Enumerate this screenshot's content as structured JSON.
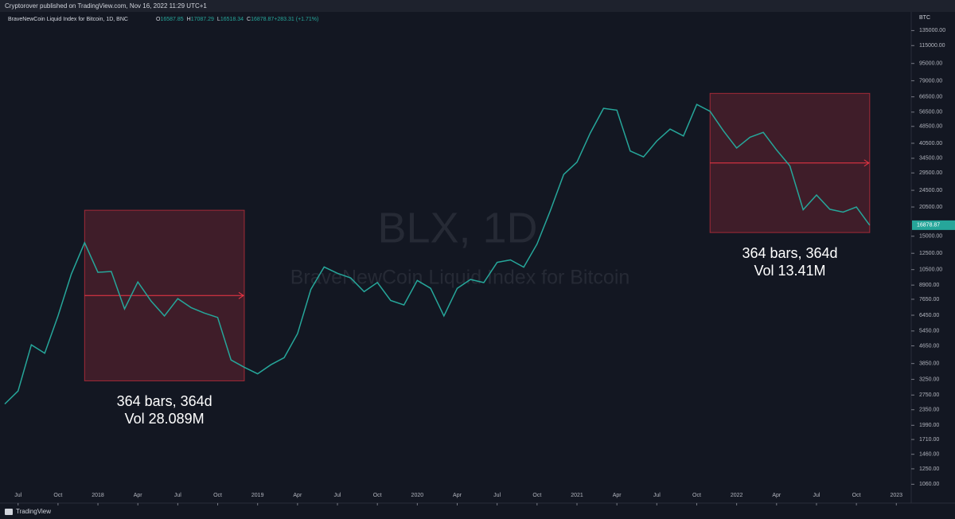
{
  "header": {
    "publisher": "Cryptorover published on TradingView.com, Nov 16, 2022 11:29 UTC+1"
  },
  "footer": {
    "brand": "TradingView"
  },
  "chart_data": {
    "type": "line",
    "symbol_title": "BraveNewCoin Liquid Index for Bitcoin, 1D, BNC",
    "ohlc": [
      {
        "key": "O",
        "value": "16587.85"
      },
      {
        "key": "H",
        "value": "17087.29"
      },
      {
        "key": "L",
        "value": "16518.34"
      },
      {
        "key": "C",
        "value": "16878.87"
      },
      {
        "key": "",
        "value": "+283.31 (+1.71%)"
      }
    ],
    "watermark": "BLX, 1D",
    "watermark_subtitle": "BraveNewCoin Liquid Index for Bitcoin",
    "currency": "BTC",
    "log_scale": true,
    "grid": false,
    "x": [
      "2017-06",
      "2017-07",
      "2017-08",
      "2017-09",
      "2017-10",
      "2017-11",
      "2017-12",
      "2018-01",
      "2018-02",
      "2018-03",
      "2018-04",
      "2018-05",
      "2018-06",
      "2018-07",
      "2018-08",
      "2018-09",
      "2018-10",
      "2018-11",
      "2018-12",
      "2019-01",
      "2019-02",
      "2019-03",
      "2019-04",
      "2019-05",
      "2019-06",
      "2019-07",
      "2019-08",
      "2019-09",
      "2019-10",
      "2019-11",
      "2019-12",
      "2020-01",
      "2020-02",
      "2020-03",
      "2020-04",
      "2020-05",
      "2020-06",
      "2020-07",
      "2020-08",
      "2020-09",
      "2020-10",
      "2020-11",
      "2020-12",
      "2021-01",
      "2021-02",
      "2021-03",
      "2021-04",
      "2021-05",
      "2021-06",
      "2021-07",
      "2021-08",
      "2021-09",
      "2021-10",
      "2021-11",
      "2021-12",
      "2022-01",
      "2022-02",
      "2022-03",
      "2022-04",
      "2022-05",
      "2022-06",
      "2022-07",
      "2022-08",
      "2022-09",
      "2022-10",
      "2022-11"
    ],
    "series": [
      {
        "color": "#26a69a",
        "values": [
          2500,
          2870,
          4700,
          4300,
          6400,
          10000,
          14000,
          10200,
          10300,
          6900,
          9200,
          7500,
          6400,
          7700,
          7000,
          6600,
          6300,
          4000,
          3700,
          3450,
          3800,
          4100,
          5300,
          8500,
          10800,
          10100,
          9600,
          8300,
          9150,
          7550,
          7200,
          9350,
          8600,
          6400,
          8600,
          9450,
          9140,
          11350,
          11650,
          10780,
          13800,
          19700,
          29000,
          33100,
          45200,
          58800,
          57700,
          37300,
          35000,
          41500,
          47100,
          43800,
          61300,
          57000,
          46300,
          38500,
          43200,
          45500,
          37700,
          31800,
          19900,
          23300,
          20000,
          19400,
          20500,
          16879
        ]
      }
    ],
    "last_price": 16878.87,
    "xlim": [
      "2017-06",
      "2023-02"
    ],
    "xticks": [
      {
        "value": "2017-07",
        "label": "Jul"
      },
      {
        "value": "2017-10",
        "label": "Oct"
      },
      {
        "value": "2018-01",
        "label": "2018"
      },
      {
        "value": "2018-04",
        "label": "Apr"
      },
      {
        "value": "2018-07",
        "label": "Jul"
      },
      {
        "value": "2018-10",
        "label": "Oct"
      },
      {
        "value": "2019-01",
        "label": "2019"
      },
      {
        "value": "2019-04",
        "label": "Apr"
      },
      {
        "value": "2019-07",
        "label": "Jul"
      },
      {
        "value": "2019-10",
        "label": "Oct"
      },
      {
        "value": "2020-01",
        "label": "2020"
      },
      {
        "value": "2020-04",
        "label": "Apr"
      },
      {
        "value": "2020-07",
        "label": "Jul"
      },
      {
        "value": "2020-10",
        "label": "Oct"
      },
      {
        "value": "2021-01",
        "label": "2021"
      },
      {
        "value": "2021-04",
        "label": "Apr"
      },
      {
        "value": "2021-07",
        "label": "Jul"
      },
      {
        "value": "2021-10",
        "label": "Oct"
      },
      {
        "value": "2022-01",
        "label": "2022"
      },
      {
        "value": "2022-04",
        "label": "Apr"
      },
      {
        "value": "2022-07",
        "label": "Jul"
      },
      {
        "value": "2022-10",
        "label": "Oct"
      },
      {
        "value": "2023-01",
        "label": "2023"
      }
    ],
    "ylim": [
      920,
      145000
    ],
    "yticks": [
      {
        "value": 135000,
        "label": "135000.00"
      },
      {
        "value": 115000,
        "label": "115000.00"
      },
      {
        "value": 95000,
        "label": "95000.00"
      },
      {
        "value": 79000,
        "label": "79000.00"
      },
      {
        "value": 66500,
        "label": "66500.00"
      },
      {
        "value": 56500,
        "label": "56500.00"
      },
      {
        "value": 48500,
        "label": "48500.00"
      },
      {
        "value": 40500,
        "label": "40500.00"
      },
      {
        "value": 34500,
        "label": "34500.00"
      },
      {
        "value": 29500,
        "label": "29500.00"
      },
      {
        "value": 24500,
        "label": "24500.00"
      },
      {
        "value": 20500,
        "label": "20500.00"
      },
      {
        "value": 15000,
        "label": "15000.00"
      },
      {
        "value": 12500,
        "label": "12500.00"
      },
      {
        "value": 10500,
        "label": "10500.00"
      },
      {
        "value": 8900,
        "label": "8900.00"
      },
      {
        "value": 7650,
        "label": "7650.00"
      },
      {
        "value": 6450,
        "label": "6450.00"
      },
      {
        "value": 5450,
        "label": "5450.00"
      },
      {
        "value": 4650,
        "label": "4650.00"
      },
      {
        "value": 3850,
        "label": "3850.00"
      },
      {
        "value": 3250,
        "label": "3250.00"
      },
      {
        "value": 2750,
        "label": "2750.00"
      },
      {
        "value": 2350,
        "label": "2350.00"
      },
      {
        "value": 1990,
        "label": "1990.00"
      },
      {
        "value": 1710,
        "label": "1710.00"
      },
      {
        "value": 1460,
        "label": "1460.00"
      },
      {
        "value": 1250,
        "label": "1250.00"
      },
      {
        "value": 1060,
        "label": "1060.00"
      }
    ],
    "measures": [
      {
        "start": "2017-12",
        "end": "2018-12",
        "high": 19800,
        "low": 3200,
        "color": "#f23645",
        "label_bars": "364 bars, 364d",
        "label_volume": "Vol 28.089M"
      },
      {
        "start": "2021-11",
        "end": "2022-11",
        "high": 69000,
        "low": 15600,
        "color": "#f23645",
        "label_bars": "364 bars, 364d",
        "label_volume": "Vol 13.41M"
      }
    ]
  }
}
